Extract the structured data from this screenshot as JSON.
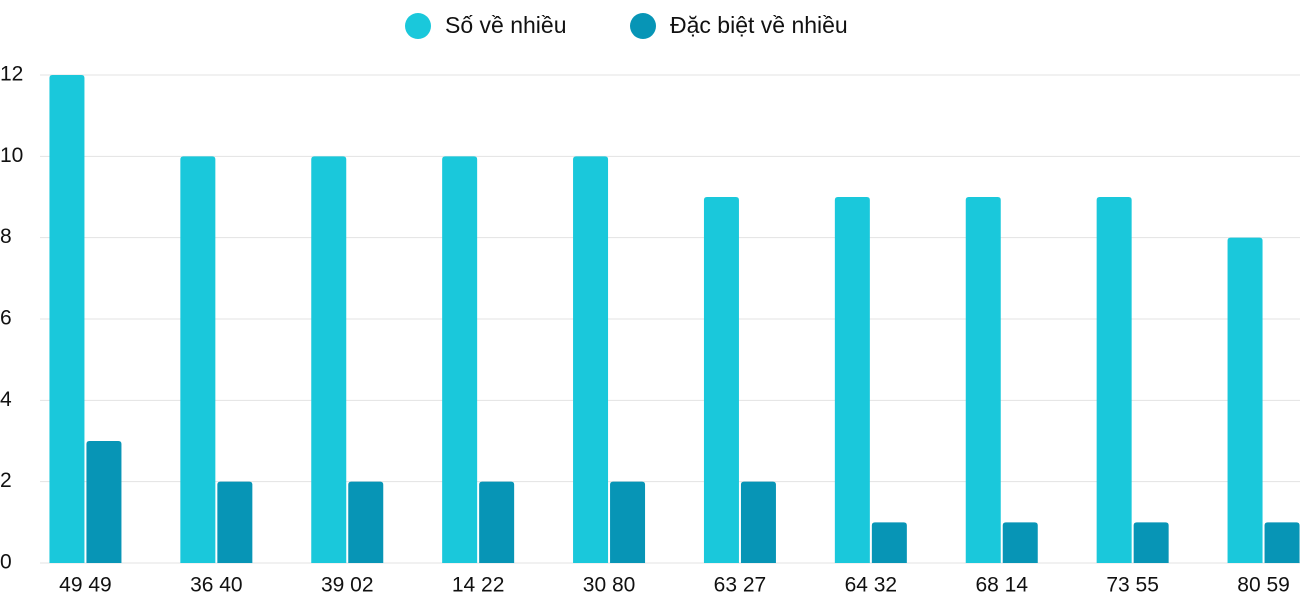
{
  "chart_data": {
    "type": "bar",
    "categories": [
      "49 49",
      "36 40",
      "39 02",
      "14 22",
      "30 80",
      "63 27",
      "64 32",
      "68 14",
      "73 55",
      "80 59"
    ],
    "series": [
      {
        "name": "Số về nhiều",
        "color": "#1ac8db",
        "values": [
          12,
          10,
          10,
          10,
          10,
          9,
          9,
          9,
          9,
          8
        ]
      },
      {
        "name": "Đặc biệt về nhiều",
        "color": "#0795b6",
        "values": [
          3,
          2,
          2,
          2,
          2,
          2,
          1,
          1,
          1,
          1
        ]
      }
    ],
    "ylim": [
      0,
      12
    ],
    "yticks": [
      0,
      2,
      4,
      6,
      8,
      10,
      12
    ],
    "grid": true,
    "legend": "top"
  }
}
